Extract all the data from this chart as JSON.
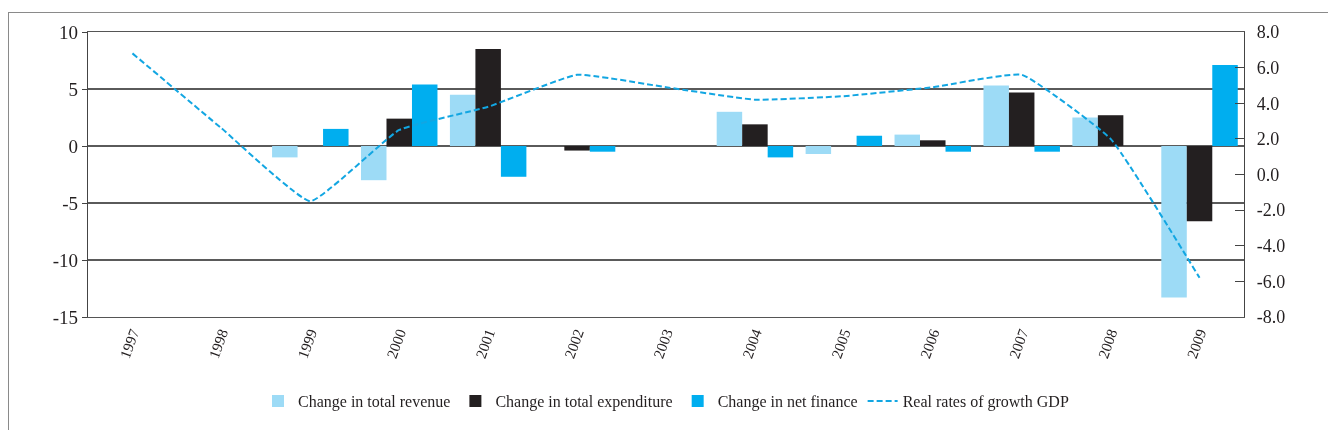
{
  "chart_data": {
    "type": "bar",
    "categories": [
      "1997",
      "1998",
      "1999",
      "2000",
      "2001",
      "2002",
      "2003",
      "2004",
      "2005",
      "2006",
      "2007",
      "2008",
      "2009"
    ],
    "series": [
      {
        "name": "Change in total revenue",
        "color": "#9ddbf6",
        "values": [
          null,
          null,
          -1.0,
          -3.0,
          4.5,
          null,
          null,
          3.0,
          -0.7,
          1.0,
          5.3,
          2.5,
          -13.3
        ]
      },
      {
        "name": "Change in total expenditure",
        "color": "#231f20",
        "values": [
          null,
          null,
          null,
          2.4,
          8.5,
          -0.4,
          null,
          1.9,
          null,
          0.5,
          4.7,
          2.7,
          -6.6
        ]
      },
      {
        "name": "Change in net finance",
        "color": "#00aeef",
        "values": [
          null,
          null,
          1.5,
          5.4,
          -2.7,
          -0.5,
          null,
          -1.0,
          0.9,
          -0.5,
          -0.5,
          null,
          7.1
        ]
      },
      {
        "name": "Real rates of growth GDP",
        "type": "line",
        "axis": "y2",
        "line_style": "dashed",
        "color": "#12a6e2",
        "values": [
          6.8,
          2.6,
          -1.5,
          2.5,
          3.8,
          5.6,
          4.9,
          4.2,
          4.4,
          4.9,
          5.6,
          2.0,
          -5.8
        ]
      }
    ],
    "ylim": [
      -15,
      10
    ],
    "yticks": [
      -15,
      -10,
      -5,
      0,
      5,
      10
    ],
    "y2lim": [
      -8,
      8
    ],
    "y2ticks": [
      {
        "value": -8,
        "label": "-8.0"
      },
      {
        "value": -6,
        "label": "-6.0"
      },
      {
        "value": -4,
        "label": "-4.0"
      },
      {
        "value": -2,
        "label": "-2.0"
      },
      {
        "value": 0,
        "label": "0.0"
      },
      {
        "value": 2,
        "label": "2.0"
      },
      {
        "value": 4,
        "label": "4.0"
      },
      {
        "value": 6,
        "label": "6.0"
      },
      {
        "value": 8,
        "label": "8.0"
      }
    ],
    "grid": "y",
    "legend": "bottom"
  }
}
